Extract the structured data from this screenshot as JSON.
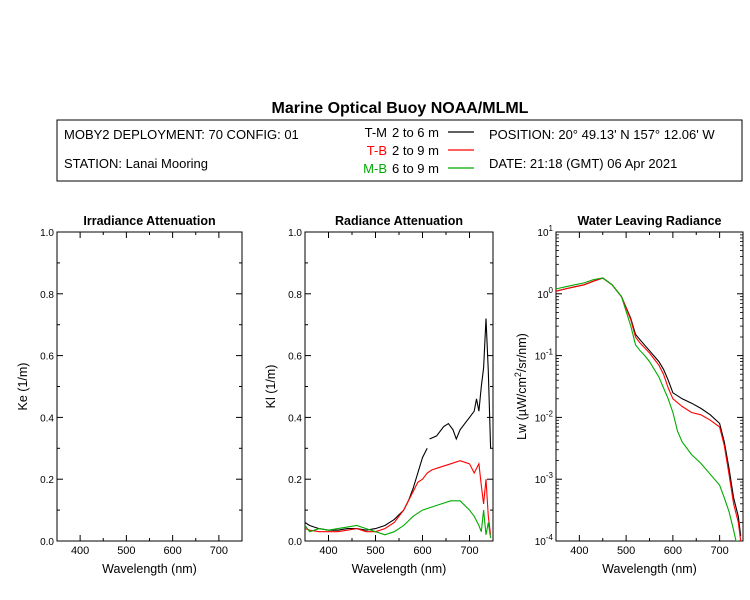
{
  "title": "Marine Optical Buoy NOAA/MLML",
  "info": {
    "deployment": "MOBY2 DEPLOYMENT: 70 CONFIG: 01",
    "station": "STATION: Lanai Mooring",
    "position": "POSITION: 20° 49.13' N   157° 12.06' W",
    "date": "DATE: 21:18 (GMT) 06 Apr 2021"
  },
  "legend": [
    {
      "code": "T-M",
      "range": "2 to 6  m",
      "color": "#000000"
    },
    {
      "code": "T-B",
      "range": "2 to 9  m",
      "color": "#ff0000"
    },
    {
      "code": "M-B",
      "range": "6 to 9  m",
      "color": "#00aa00"
    }
  ],
  "chart_data": [
    {
      "type": "line",
      "title": "Irradiance Attenuation",
      "xlabel": "Wavelength (nm)",
      "ylabel": "Ke  (1/m)",
      "xlim": [
        350,
        750
      ],
      "ylim": [
        0,
        1
      ],
      "xticks": [
        "400",
        "500",
        "600",
        "700"
      ],
      "yticks": [
        "0.0",
        "0.2",
        "0.4",
        "0.6",
        "0.8",
        "1.0"
      ],
      "series": []
    },
    {
      "type": "line",
      "title": "Radiance Attenuation",
      "xlabel": "Wavelength (nm)",
      "ylabel": "Kl  (1/m)",
      "xlim": [
        350,
        750
      ],
      "ylim": [
        0,
        1
      ],
      "xticks": [
        "400",
        "500",
        "600",
        "700"
      ],
      "yticks": [
        "0.0",
        "0.2",
        "0.4",
        "0.6",
        "0.8",
        "1.0"
      ],
      "series": [
        {
          "name": "T-M",
          "color": "#000000",
          "segments": [
            {
              "x": [
                350,
                360,
                370,
                380,
                400,
                420,
                440,
                460,
                480,
                500,
                520,
                540,
                560,
                570,
                580,
                590,
                600,
                610
              ],
              "y": [
                0.06,
                0.05,
                0.045,
                0.04,
                0.035,
                0.035,
                0.04,
                0.04,
                0.035,
                0.04,
                0.05,
                0.07,
                0.1,
                0.13,
                0.17,
                0.22,
                0.27,
                0.3
              ]
            },
            {
              "x": [
                615,
                630,
                645,
                655,
                665,
                672,
                680,
                690,
                700,
                710,
                715,
                720,
                725,
                730,
                735,
                740,
                745
              ],
              "y": [
                0.33,
                0.34,
                0.37,
                0.38,
                0.36,
                0.33,
                0.36,
                0.38,
                0.4,
                0.42,
                0.46,
                0.42,
                0.5,
                0.56,
                0.72,
                0.55,
                0.3
              ]
            }
          ]
        },
        {
          "name": "T-B",
          "color": "#ff0000",
          "segments": [
            {
              "x": [
                350,
                360,
                380,
                400,
                420,
                440,
                460,
                480,
                500,
                520,
                540,
                560,
                580,
                590,
                600,
                610,
                620,
                640,
                660,
                680,
                700,
                710,
                720,
                725,
                730,
                735,
                740,
                745
              ],
              "y": [
                0.04,
                0.035,
                0.03,
                0.03,
                0.03,
                0.035,
                0.04,
                0.03,
                0.03,
                0.04,
                0.06,
                0.1,
                0.16,
                0.19,
                0.2,
                0.22,
                0.23,
                0.24,
                0.25,
                0.26,
                0.25,
                0.22,
                0.25,
                0.18,
                0.12,
                0.2,
                0.08,
                0.02
              ]
            }
          ]
        },
        {
          "name": "M-B",
          "color": "#00aa00",
          "segments": [
            {
              "x": [
                350,
                360,
                380,
                400,
                420,
                440,
                460,
                480,
                500,
                520,
                540,
                560,
                580,
                600,
                620,
                640,
                660,
                680,
                700,
                710,
                720,
                725,
                730,
                735,
                740,
                745
              ],
              "y": [
                0.05,
                0.03,
                0.04,
                0.035,
                0.04,
                0.045,
                0.05,
                0.04,
                0.03,
                0.02,
                0.03,
                0.05,
                0.08,
                0.1,
                0.11,
                0.12,
                0.13,
                0.13,
                0.1,
                0.08,
                0.05,
                0.03,
                0.1,
                0.02,
                0.06,
                0.01
              ]
            }
          ]
        }
      ]
    },
    {
      "type": "line",
      "title": "Water Leaving Radiance",
      "xlabel": "Wavelength (nm)",
      "ylabel": "Lw  (µW/cm²/sr/nm)",
      "scale": "log",
      "xlim": [
        350,
        750
      ],
      "ylim": [
        0.0001,
        10
      ],
      "xticks": [
        "400",
        "500",
        "600",
        "700"
      ],
      "yticks": [
        "10^-4",
        "10^-3",
        "10^-2",
        "10^-1",
        "10^0",
        "10^1"
      ],
      "series": [
        {
          "name": "T-M",
          "color": "#000000",
          "segments": [
            {
              "x": [
                350,
                370,
                390,
                410,
                430,
                450,
                470,
                490,
                510,
                520,
                530,
                550,
                570,
                580,
                590,
                600,
                620,
                640,
                660,
                680,
                700,
                710,
                720,
                730,
                740,
                745
              ],
              "y": [
                1.1,
                1.2,
                1.3,
                1.4,
                1.6,
                1.8,
                1.4,
                0.9,
                0.4,
                0.22,
                0.18,
                0.12,
                0.08,
                0.06,
                0.04,
                0.025,
                0.02,
                0.017,
                0.014,
                0.011,
                0.008,
                0.004,
                0.0015,
                0.0005,
                0.00025,
                0.00012
              ]
            }
          ]
        },
        {
          "name": "T-B",
          "color": "#ff0000",
          "segments": [
            {
              "x": [
                350,
                370,
                390,
                410,
                430,
                450,
                470,
                490,
                510,
                520,
                530,
                550,
                570,
                580,
                590,
                600,
                620,
                640,
                660,
                680,
                700,
                710,
                720,
                730,
                740,
                745
              ],
              "y": [
                1.1,
                1.2,
                1.3,
                1.4,
                1.6,
                1.8,
                1.4,
                0.9,
                0.38,
                0.2,
                0.16,
                0.11,
                0.07,
                0.05,
                0.03,
                0.02,
                0.015,
                0.012,
                0.011,
                0.009,
                0.007,
                0.0035,
                0.0012,
                0.0004,
                0.0002,
                0.0001
              ]
            }
          ]
        },
        {
          "name": "M-B",
          "color": "#00aa00",
          "segments": [
            {
              "x": [
                350,
                370,
                390,
                410,
                430,
                450,
                470,
                490,
                510,
                520,
                530,
                540,
                550,
                560,
                570,
                580,
                590,
                600,
                610,
                620,
                640,
                660,
                680,
                700,
                710,
                720,
                730,
                735,
                740
              ],
              "y": [
                1.2,
                1.3,
                1.4,
                1.5,
                1.7,
                1.8,
                1.4,
                0.9,
                0.3,
                0.15,
                0.12,
                0.1,
                0.08,
                0.06,
                0.045,
                0.03,
                0.02,
                0.012,
                0.006,
                0.004,
                0.0025,
                0.0018,
                0.0012,
                0.0008,
                0.0005,
                0.0003,
                0.00015,
                0.0001,
                0.0001
              ]
            }
          ]
        }
      ]
    }
  ]
}
